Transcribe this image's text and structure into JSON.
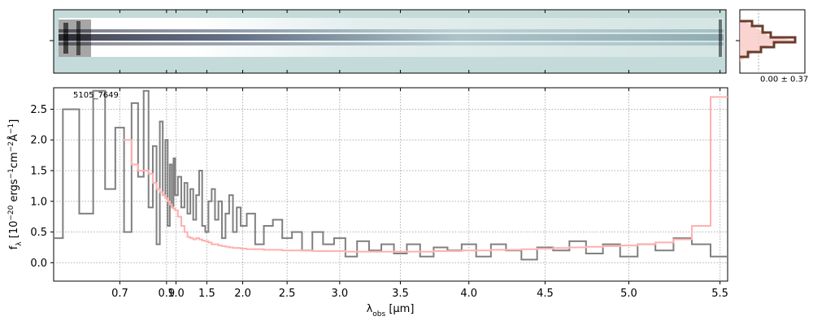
{
  "chart_data": {
    "type": "step",
    "xscale": "prism",
    "annotation": "5105_7649",
    "histogram_label": "0.00 ± 0.37",
    "xlabel": [
      "λ",
      "obs",
      " [μm]"
    ],
    "ylabel": [
      "f",
      "λ",
      " [10",
      "−20",
      " ergs",
      "−1",
      "cm",
      "−2",
      "Å",
      "−1",
      "]"
    ],
    "x": [
      0.6,
      0.62,
      0.64,
      0.66,
      0.68,
      0.7,
      0.72,
      0.74,
      0.76,
      0.78,
      0.8,
      0.82,
      0.84,
      0.86,
      0.88,
      0.9,
      0.92,
      0.94,
      0.96,
      0.98,
      1.0,
      1.05,
      1.1,
      1.15,
      1.2,
      1.25,
      1.3,
      1.35,
      1.4,
      1.45,
      1.5,
      1.55,
      1.6,
      1.65,
      1.7,
      1.75,
      1.8,
      1.85,
      1.9,
      1.95,
      2.0,
      2.1,
      2.2,
      2.3,
      2.4,
      2.5,
      2.6,
      2.7,
      2.8,
      2.9,
      3.0,
      3.1,
      3.2,
      3.3,
      3.4,
      3.5,
      3.6,
      3.7,
      3.8,
      3.9,
      4.0,
      4.1,
      4.2,
      4.3,
      4.4,
      4.5,
      4.6,
      4.7,
      4.8,
      4.9,
      5.0,
      5.1,
      5.2,
      5.3,
      5.4,
      5.5
    ],
    "series": [
      {
        "color": "#808080",
        "values": [
          0.4,
          2.5,
          0.8,
          2.8,
          1.2,
          2.2,
          0.5,
          2.6,
          1.4,
          2.8,
          0.9,
          1.9,
          0.3,
          2.3,
          1.1,
          2.0,
          0.6,
          1.6,
          0.9,
          1.7,
          1.1,
          1.4,
          0.9,
          1.3,
          0.8,
          1.2,
          0.7,
          1.1,
          1.5,
          0.6,
          0.5,
          1.0,
          1.2,
          0.7,
          1.0,
          0.4,
          0.8,
          1.1,
          0.5,
          0.9,
          0.6,
          0.8,
          0.3,
          0.6,
          0.7,
          0.4,
          0.5,
          0.2,
          0.5,
          0.3,
          0.4,
          0.1,
          0.35,
          0.2,
          0.3,
          0.15,
          0.3,
          0.1,
          0.25,
          0.2,
          0.3,
          0.1,
          0.3,
          0.2,
          0.05,
          0.25,
          0.2,
          0.35,
          0.15,
          0.3,
          0.1,
          0.3,
          0.2,
          0.4,
          0.3,
          0.1
        ]
      },
      {
        "color": "#ffb0b0",
        "values": [
          null,
          null,
          null,
          null,
          null,
          null,
          2.0,
          1.6,
          1.5,
          1.5,
          1.45,
          1.3,
          1.2,
          1.15,
          1.1,
          1.05,
          1.0,
          0.95,
          0.9,
          0.88,
          0.85,
          0.75,
          0.6,
          0.5,
          0.42,
          0.4,
          0.38,
          0.4,
          0.38,
          0.36,
          0.35,
          0.33,
          0.3,
          0.3,
          0.28,
          0.27,
          0.26,
          0.25,
          0.24,
          0.24,
          0.23,
          0.22,
          0.22,
          0.21,
          0.21,
          0.2,
          0.2,
          0.2,
          0.19,
          0.19,
          0.19,
          0.18,
          0.18,
          0.18,
          0.18,
          0.18,
          0.18,
          0.18,
          0.19,
          0.19,
          0.2,
          0.2,
          0.21,
          0.21,
          0.22,
          0.23,
          0.24,
          0.25,
          0.26,
          0.27,
          0.28,
          0.3,
          0.33,
          0.38,
          0.6,
          2.7
        ]
      }
    ],
    "xlim": [
      0.6,
      5.54
    ],
    "ylim": [
      -0.3,
      2.85
    ],
    "xticks": [
      0.7,
      0.9,
      {
        "value": 1,
        "label": "1.0"
      },
      1.5,
      {
        "value": 2,
        "label": "2.0"
      },
      2.5,
      {
        "value": 3,
        "label": "3.0"
      },
      3.5,
      {
        "value": 4,
        "label": "4.0"
      },
      4.5,
      {
        "value": 5,
        "label": "5.0"
      },
      5.5
    ],
    "yticks": [
      {
        "value": 0,
        "label": "0.0"
      },
      0.5,
      {
        "value": 1,
        "label": "1.0"
      },
      1.5,
      {
        "value": 2,
        "label": "2.0"
      },
      2.5
    ],
    "grid": true
  }
}
